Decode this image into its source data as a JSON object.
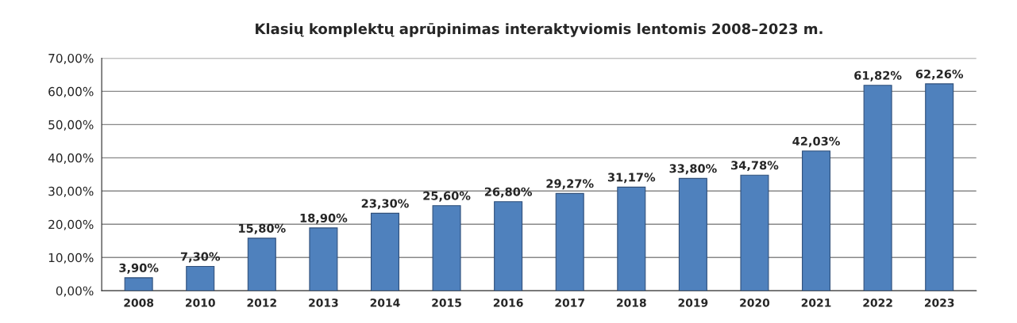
{
  "chart_data": {
    "type": "bar",
    "title": "Klasių komplektų aprūpinimas interaktyviomis lentomis 2008–2023 m.",
    "categories": [
      "2008",
      "2010",
      "2012",
      "2013",
      "2014",
      "2015",
      "2016",
      "2017",
      "2018",
      "2019",
      "2020",
      "2021",
      "2022",
      "2023"
    ],
    "values": [
      3.9,
      7.3,
      15.8,
      18.9,
      23.3,
      25.6,
      26.8,
      29.27,
      31.17,
      33.8,
      34.78,
      42.03,
      61.82,
      62.26
    ],
    "value_labels": [
      "3,90%",
      "7,30%",
      "15,80%",
      "18,90%",
      "23,30%",
      "25,60%",
      "26,80%",
      "29,27%",
      "31,17%",
      "33,80%",
      "34,78%",
      "42,03%",
      "61,82%",
      "62,26%"
    ],
    "color": "#4f81bd",
    "ylim": [
      0,
      70
    ],
    "yticks": [
      {
        "value": 0,
        "label": "0,00%"
      },
      {
        "value": 10,
        "label": "10,00%"
      },
      {
        "value": 20,
        "label": "20,00%"
      },
      {
        "value": 30,
        "label": "30,00%"
      },
      {
        "value": 40,
        "label": "40,00%"
      },
      {
        "value": 50,
        "label": "50,00%"
      },
      {
        "value": 60,
        "label": "60,00%"
      },
      {
        "value": 70,
        "label": "70,00%"
      }
    ],
    "grid": "y"
  }
}
